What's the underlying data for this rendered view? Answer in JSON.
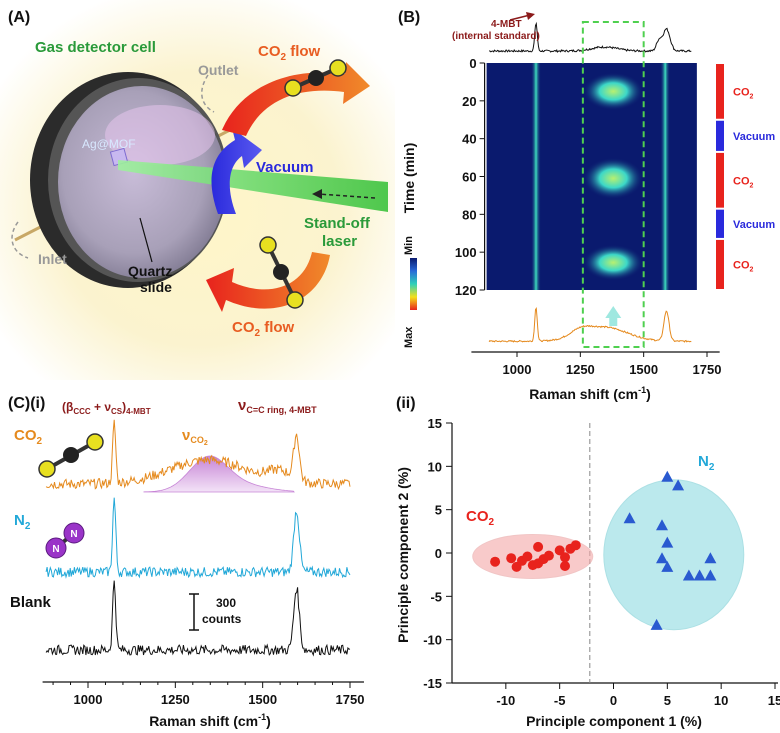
{
  "colors": {
    "co2_red": "#e8231d",
    "n2_cyan": "#22a8d8",
    "blank_black": "#111111",
    "co2_trace": "#e58a1e",
    "pink_peak": "#c785d6",
    "gas_green": "#2a9a3a",
    "vacuum_blue": "#2a2adc",
    "co2_flow_orange": "#e85d22",
    "label_darkred": "#8b1a1a",
    "heatmap_bg": "#0a1a6e",
    "box_green": "#4fd04f"
  },
  "panelA": {
    "label": "(A)",
    "gas_detector": "Gas detector cell",
    "outlet": "Outlet",
    "inlet": "Inlet",
    "agmof": "Ag@MOF",
    "vacuum": "Vacuum",
    "standoff1": "Stand-off",
    "standoff2": "laser",
    "quartz1": "Quartz",
    "quartz2": "slide",
    "co2flow_top_a": "CO",
    "co2flow_top_sub": "2",
    "co2flow_top_b": " flow",
    "co2flow_bot_a": "CO",
    "co2flow_bot_sub": "2",
    "co2flow_bot_b": " flow"
  },
  "panelB": {
    "label": "(B)",
    "mbt_line1": "4-MBT",
    "mbt_line2": "(internal standard)",
    "ylabel": "Time (min)",
    "xlabel_a": "Raman shift (cm",
    "xlabel_sup": "-1",
    "xlabel_b": ")",
    "colorbar_min": "Min",
    "colorbar_max": "Max",
    "phases": [
      "CO2",
      "Vacuum",
      "CO2",
      "Vacuum",
      "CO2"
    ]
  },
  "panelCi": {
    "label": "(C)(i)",
    "co2_a": "CO",
    "co2_sub": "2",
    "n2_a": "N",
    "n2_sub": "2",
    "blank": "Blank",
    "scale_value": "300",
    "scale_unit": "counts",
    "ann1_a": "(β",
    "ann1_sub1": "CCC",
    "ann1_b": " + ν",
    "ann1_sub2": "CS",
    "ann1_c": ")",
    "ann1_sub3": "4-MBT",
    "ann2_a": "ν",
    "ann2_sub": "C=C ring, 4-MBT",
    "ann3_a": "ν",
    "ann3_sub": "CO",
    "ann3_subsub": "2",
    "xlabel_a": "Raman shift (cm",
    "xlabel_sup": "-1",
    "xlabel_b": ")"
  },
  "panelCii": {
    "label": "(ii)",
    "co2_a": "CO",
    "co2_sub": "2",
    "n2_a": "N",
    "n2_sub": "2",
    "xlabel": "Principle component 1 (%)",
    "ylabel": "Principle component 2 (%)"
  },
  "chart_data": [
    {
      "type": "heatmap",
      "panel": "B",
      "xlabel": "Raman shift (cm-1)",
      "ylabel": "Time (min)",
      "xlim": [
        800,
        1800
      ],
      "ylim": [
        0,
        120
      ],
      "xticks": [
        1000,
        1250,
        1500,
        1750
      ],
      "yticks": [
        0,
        20,
        40,
        60,
        80,
        100,
        120
      ],
      "persistent_bands": [
        1075,
        1585
      ],
      "co2_band_range": [
        1260,
        1500
      ],
      "highlight_box_range": [
        1260,
        1500
      ],
      "phases": [
        {
          "label": "CO2",
          "t_start": 0,
          "t_end": 30
        },
        {
          "label": "Vacuum",
          "t_start": 30,
          "t_end": 47
        },
        {
          "label": "CO2",
          "t_start": 47,
          "t_end": 77
        },
        {
          "label": "Vacuum",
          "t_start": 77,
          "t_end": 93
        },
        {
          "label": "CO2",
          "t_start": 93,
          "t_end": 120
        }
      ],
      "co2_signal_windows": [
        [
          5,
          25
        ],
        [
          50,
          72
        ],
        [
          96,
          115
        ]
      ]
    },
    {
      "type": "line",
      "panel": "C(i)",
      "xlabel": "Raman shift (cm-1)",
      "xlim": [
        850,
        1800
      ],
      "xticks": [
        1000,
        1250,
        1500,
        1750
      ],
      "series": [
        {
          "name": "CO2",
          "peaks": [
            1075,
            1345,
            1595
          ]
        },
        {
          "name": "N2",
          "peaks": [
            1075,
            1595
          ]
        },
        {
          "name": "Blank",
          "peaks": [
            1075,
            1595
          ]
        }
      ],
      "scale_bar_counts": 300
    },
    {
      "type": "scatter",
      "panel": "C(ii)",
      "xlabel": "Principle component 1 (%)",
      "ylabel": "Principle component 2 (%)",
      "xlim": [
        -15,
        15
      ],
      "ylim": [
        -15,
        15
      ],
      "xticks": [
        -10,
        -5,
        0,
        5,
        10,
        15
      ],
      "yticks": [
        -15,
        -10,
        -5,
        0,
        5,
        10,
        15
      ],
      "divider_x": -2.2,
      "series": [
        {
          "name": "CO2",
          "marker": "circle",
          "points": [
            [
              -11,
              -1
            ],
            [
              -9.5,
              -0.6
            ],
            [
              -9,
              -1.6
            ],
            [
              -8.5,
              -0.9
            ],
            [
              -8,
              -0.4
            ],
            [
              -7.5,
              -1.4
            ],
            [
              -7,
              0.7
            ],
            [
              -7,
              -1.2
            ],
            [
              -6.5,
              -0.7
            ],
            [
              -6,
              -0.3
            ],
            [
              -5,
              0.3
            ],
            [
              -4.5,
              -0.5
            ],
            [
              -4.5,
              -1.5
            ],
            [
              -4,
              0.5
            ],
            [
              -3.5,
              0.9
            ]
          ]
        },
        {
          "name": "N2",
          "marker": "triangle",
          "points": [
            [
              1.5,
              4
            ],
            [
              4.5,
              3.2
            ],
            [
              5,
              8.8
            ],
            [
              6,
              7.8
            ],
            [
              5,
              1.2
            ],
            [
              4.5,
              -0.6
            ],
            [
              5,
              -1.6
            ],
            [
              7,
              -2.6
            ],
            [
              8,
              -2.6
            ],
            [
              9,
              -0.6
            ],
            [
              9,
              -2.6
            ],
            [
              4,
              -8.3
            ]
          ]
        }
      ]
    }
  ]
}
